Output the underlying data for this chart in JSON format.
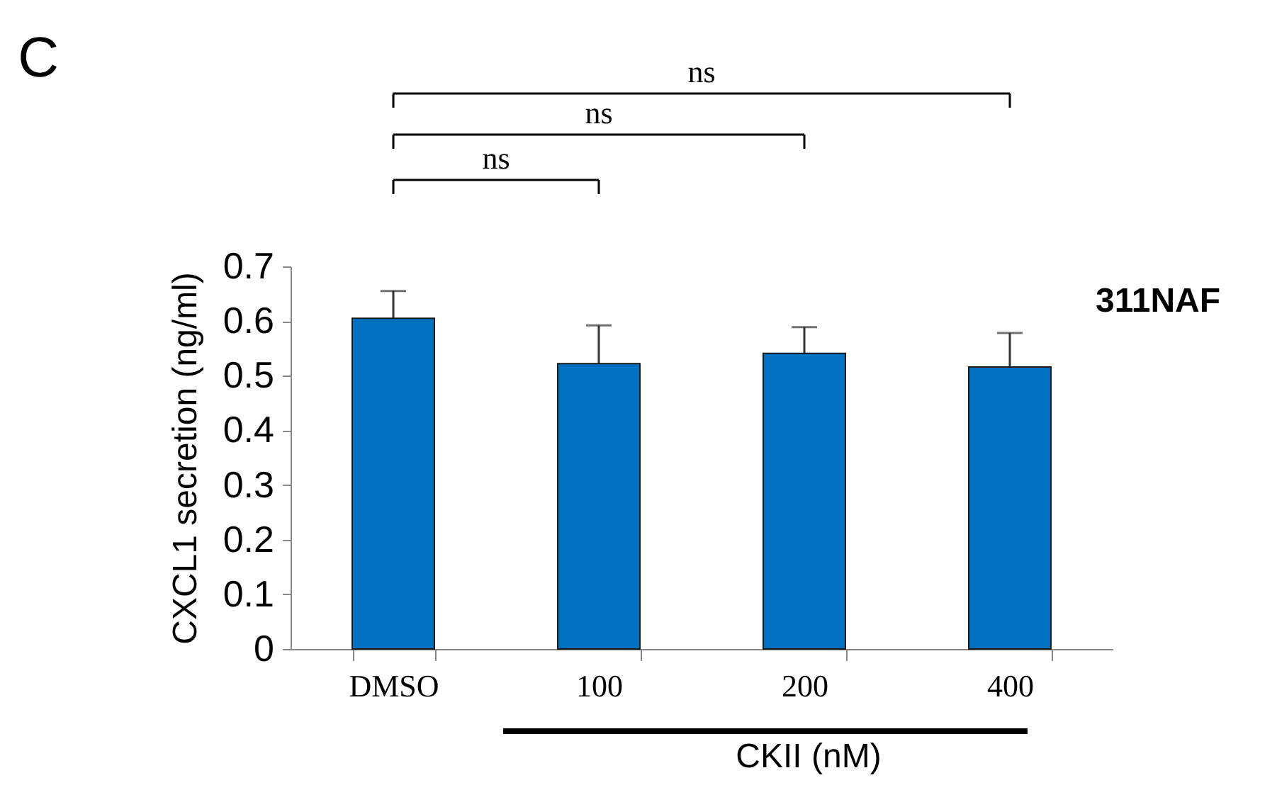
{
  "chart_data": {
    "type": "bar",
    "xlabel": "CKII (nM)",
    "ylabel": "CXCL1 secretion (ng/ml)",
    "categories": [
      "DMSO",
      "100",
      "200",
      "400"
    ],
    "values": [
      0.605,
      0.522,
      0.541,
      0.516
    ],
    "errors": [
      0.05,
      0.07,
      0.048,
      0.062
    ],
    "color": "#0070c0",
    "ylim": [
      0,
      0.7
    ],
    "yticks": [
      0,
      0.1,
      0.2,
      0.3,
      0.4,
      0.5,
      0.6,
      0.7
    ],
    "grid": false,
    "annotations": [
      "C",
      "311NAF",
      "ns",
      "ns",
      "ns"
    ]
  }
}
